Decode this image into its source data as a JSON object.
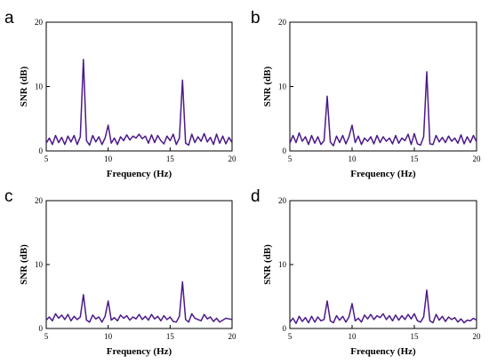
{
  "chart_data": [
    {
      "panel_label": "a",
      "type": "line",
      "xlabel": "Frequency (Hz)",
      "ylabel": "SNR (dB)",
      "xlim": [
        5,
        20
      ],
      "ylim": [
        0,
        20
      ],
      "xticks": [
        5,
        10,
        15,
        20
      ],
      "yticks": [
        0,
        10,
        20
      ],
      "grid": false,
      "color": "#4b1a8a",
      "x": [
        5.0,
        5.25,
        5.5,
        5.75,
        6.0,
        6.25,
        6.5,
        6.75,
        7.0,
        7.25,
        7.5,
        7.75,
        8.0,
        8.25,
        8.5,
        8.75,
        9.0,
        9.25,
        9.5,
        9.75,
        10.0,
        10.25,
        10.5,
        10.75,
        11.0,
        11.25,
        11.5,
        11.75,
        12.0,
        12.25,
        12.5,
        12.75,
        13.0,
        13.25,
        13.5,
        13.75,
        14.0,
        14.25,
        14.5,
        14.75,
        15.0,
        15.25,
        15.5,
        15.75,
        16.0,
        16.25,
        16.5,
        16.75,
        17.0,
        17.25,
        17.5,
        17.75,
        18.0,
        18.25,
        18.5,
        18.75,
        19.0,
        19.25,
        19.5,
        19.75,
        20.0
      ],
      "y": [
        1.2,
        2.0,
        1.0,
        2.4,
        1.3,
        2.1,
        1.0,
        2.3,
        1.4,
        2.4,
        1.0,
        2.2,
        14.2,
        1.6,
        0.9,
        2.4,
        1.4,
        2.2,
        1.0,
        2.0,
        4.0,
        1.2,
        2.0,
        1.0,
        2.2,
        1.6,
        2.5,
        1.7,
        2.3,
        2.0,
        2.6,
        1.9,
        2.3,
        1.2,
        2.5,
        1.3,
        2.4,
        1.6,
        1.1,
        2.3,
        1.6,
        2.6,
        1.0,
        2.0,
        11.0,
        1.2,
        0.9,
        2.6,
        1.3,
        2.2,
        1.5,
        2.7,
        1.4,
        2.1,
        1.0,
        2.6,
        1.2,
        2.3,
        1.1,
        2.1,
        1.3
      ]
    },
    {
      "panel_label": "b",
      "type": "line",
      "xlabel": "Frequency (Hz)",
      "ylabel": "SNR (dB)",
      "xlim": [
        5,
        20
      ],
      "ylim": [
        0,
        20
      ],
      "xticks": [
        5,
        10,
        15,
        20
      ],
      "yticks": [
        0,
        10,
        20
      ],
      "grid": false,
      "color": "#4b1a8a",
      "x": [
        5.0,
        5.25,
        5.5,
        5.75,
        6.0,
        6.25,
        6.5,
        6.75,
        7.0,
        7.25,
        7.5,
        7.75,
        8.0,
        8.25,
        8.5,
        8.75,
        9.0,
        9.25,
        9.5,
        9.75,
        10.0,
        10.25,
        10.5,
        10.75,
        11.0,
        11.25,
        11.5,
        11.75,
        12.0,
        12.25,
        12.5,
        12.75,
        13.0,
        13.25,
        13.5,
        13.75,
        14.0,
        14.25,
        14.5,
        14.75,
        15.0,
        15.25,
        15.5,
        15.75,
        16.0,
        16.25,
        16.5,
        16.75,
        17.0,
        17.25,
        17.5,
        17.75,
        18.0,
        18.25,
        18.5,
        18.75,
        19.0,
        19.25,
        19.5,
        19.75,
        20.0
      ],
      "y": [
        1.2,
        2.4,
        1.3,
        2.8,
        1.5,
        2.2,
        1.0,
        2.4,
        1.2,
        2.2,
        1.0,
        1.6,
        8.5,
        1.4,
        0.8,
        2.3,
        1.3,
        2.4,
        1.1,
        2.2,
        4.0,
        1.3,
        2.3,
        1.0,
        2.0,
        1.5,
        2.2,
        1.1,
        2.4,
        1.3,
        2.2,
        1.5,
        2.0,
        1.1,
        2.4,
        1.2,
        2.0,
        1.6,
        2.6,
        1.0,
        2.7,
        1.1,
        0.9,
        2.2,
        12.3,
        1.1,
        1.0,
        2.4,
        1.4,
        2.1,
        1.3,
        2.3,
        1.5,
        2.0,
        1.2,
        2.5,
        1.1,
        2.2,
        1.3,
        2.4,
        1.4
      ]
    },
    {
      "panel_label": "c",
      "type": "line",
      "xlabel": "Frequency (Hz)",
      "ylabel": "SNR (dB)",
      "xlim": [
        5,
        20
      ],
      "ylim": [
        0,
        20
      ],
      "xticks": [
        5,
        10,
        15,
        20
      ],
      "yticks": [
        0,
        10,
        20
      ],
      "grid": false,
      "color": "#4b1a8a",
      "x": [
        5.0,
        5.25,
        5.5,
        5.75,
        6.0,
        6.25,
        6.5,
        6.75,
        7.0,
        7.25,
        7.5,
        7.75,
        8.0,
        8.25,
        8.5,
        8.75,
        9.0,
        9.25,
        9.5,
        9.75,
        10.0,
        10.25,
        10.5,
        10.75,
        11.0,
        11.25,
        11.5,
        11.75,
        12.0,
        12.25,
        12.5,
        12.75,
        13.0,
        13.25,
        13.5,
        13.75,
        14.0,
        14.25,
        14.5,
        14.75,
        15.0,
        15.25,
        15.5,
        15.75,
        16.0,
        16.25,
        16.5,
        16.75,
        17.0,
        17.25,
        17.5,
        17.75,
        18.0,
        18.25,
        18.5,
        18.75,
        19.0,
        19.25,
        19.5,
        19.75,
        20.0
      ],
      "y": [
        1.3,
        1.8,
        1.2,
        2.3,
        1.6,
        2.1,
        1.4,
        2.2,
        1.2,
        1.9,
        1.4,
        1.8,
        5.3,
        1.3,
        1.0,
        2.1,
        1.5,
        1.8,
        1.0,
        1.9,
        4.3,
        1.3,
        1.7,
        1.2,
        2.1,
        1.6,
        2.0,
        1.3,
        1.8,
        1.5,
        2.2,
        1.4,
        1.9,
        1.3,
        2.2,
        1.5,
        1.9,
        1.2,
        2.0,
        1.4,
        1.8,
        1.1,
        1.0,
        1.9,
        7.3,
        1.4,
        1.0,
        2.3,
        1.6,
        1.4,
        1.2,
        2.2,
        1.5,
        1.8,
        1.1,
        1.6,
        1.0,
        1.3,
        1.6,
        1.5,
        1.4
      ]
    },
    {
      "panel_label": "d",
      "type": "line",
      "xlabel": "Frequency (Hz)",
      "ylabel": "SNR (dB)",
      "xlim": [
        5,
        20
      ],
      "ylim": [
        0,
        20
      ],
      "xticks": [
        5,
        10,
        15,
        20
      ],
      "yticks": [
        0,
        10,
        20
      ],
      "grid": false,
      "color": "#4b1a8a",
      "x": [
        5.0,
        5.25,
        5.5,
        5.75,
        6.0,
        6.25,
        6.5,
        6.75,
        7.0,
        7.25,
        7.5,
        7.75,
        8.0,
        8.25,
        8.5,
        8.75,
        9.0,
        9.25,
        9.5,
        9.75,
        10.0,
        10.25,
        10.5,
        10.75,
        11.0,
        11.25,
        11.5,
        11.75,
        12.0,
        12.25,
        12.5,
        12.75,
        13.0,
        13.25,
        13.5,
        13.75,
        14.0,
        14.25,
        14.5,
        14.75,
        15.0,
        15.25,
        15.5,
        15.75,
        16.0,
        16.25,
        16.5,
        16.75,
        17.0,
        17.25,
        17.5,
        17.75,
        18.0,
        18.25,
        18.5,
        18.75,
        19.0,
        19.25,
        19.5,
        19.75,
        20.0
      ],
      "y": [
        1.0,
        1.6,
        0.8,
        1.9,
        1.1,
        1.7,
        0.9,
        1.9,
        1.0,
        1.8,
        1.2,
        1.4,
        4.3,
        1.2,
        0.9,
        2.0,
        1.3,
        1.9,
        1.0,
        1.8,
        3.9,
        1.2,
        1.6,
        1.0,
        2.1,
        1.5,
        2.2,
        1.4,
        2.0,
        1.7,
        2.3,
        1.4,
        2.0,
        1.2,
        2.1,
        1.3,
        2.0,
        1.4,
        2.2,
        1.5,
        2.3,
        1.2,
        1.0,
        1.8,
        6.0,
        1.2,
        0.9,
        2.2,
        1.3,
        1.9,
        1.1,
        1.8,
        1.4,
        1.7,
        1.0,
        1.5,
        0.9,
        1.3,
        1.2,
        1.6,
        1.3
      ]
    }
  ]
}
